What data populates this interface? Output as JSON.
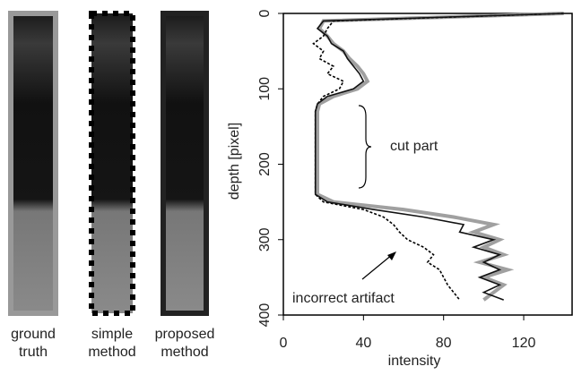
{
  "chart_data": {
    "type": "line",
    "image_labels": [
      [
        "ground",
        "truth"
      ],
      [
        "simple",
        "method"
      ],
      [
        "proposed",
        "method"
      ]
    ],
    "xlabel": "intensity",
    "ylabel": "depth [pixel]",
    "xlim": [
      0,
      145
    ],
    "ylim": [
      0,
      400
    ],
    "xticks": [
      0,
      40,
      80,
      120
    ],
    "yticks": [
      0,
      100,
      200,
      300,
      400
    ],
    "y": [
      0,
      10,
      20,
      30,
      40,
      50,
      60,
      70,
      80,
      90,
      100,
      110,
      120,
      130,
      140,
      150,
      160,
      170,
      180,
      190,
      200,
      210,
      220,
      230,
      240,
      250,
      260,
      270,
      280,
      290,
      300,
      310,
      320,
      330,
      340,
      350,
      360,
      370,
      380
    ],
    "series": [
      {
        "color": "#a0a0a0",
        "values": [
          140,
          20,
          18,
          22,
          25,
          30,
          33,
          37,
          40,
          42,
          37,
          25,
          18,
          17,
          17,
          17,
          17,
          17,
          17,
          17,
          17,
          17,
          17,
          17,
          17,
          25,
          60,
          85,
          105,
          95,
          108,
          100,
          110,
          98,
          112,
          100,
          110,
          105,
          100
        ]
      },
      {
        "color": "#000000",
        "dashed": true,
        "values": [
          140,
          25,
          22,
          20,
          15,
          20,
          18,
          25,
          22,
          30,
          28,
          20,
          17,
          16,
          16,
          16,
          16,
          16,
          16,
          16,
          16,
          16,
          16,
          16,
          16,
          20,
          40,
          50,
          55,
          58,
          62,
          70,
          75,
          72,
          78,
          80,
          82,
          85,
          88
        ]
      },
      {
        "color": "#111111",
        "values": [
          140,
          20,
          17,
          22,
          24,
          30,
          32,
          35,
          38,
          40,
          35,
          22,
          17,
          16,
          16,
          16,
          16,
          16,
          16,
          16,
          16,
          16,
          16,
          16,
          16,
          22,
          45,
          70,
          90,
          88,
          105,
          95,
          108,
          100,
          108,
          98,
          108,
          100,
          110
        ]
      }
    ],
    "annotations": [
      "cut part",
      "incorrect artifact"
    ]
  }
}
